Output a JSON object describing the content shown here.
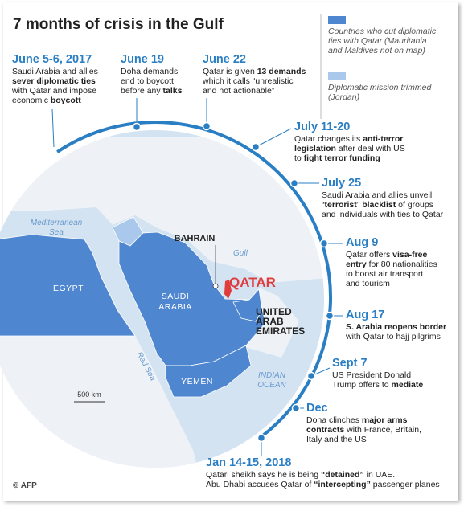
{
  "title": "7 months of crisis in the Gulf",
  "legend": [
    {
      "color": "#4f86d0",
      "lines": [
        "Countries who cut diplomatic",
        "ties with Qatar (Mauritania",
        "and Maldives not on map)"
      ]
    },
    {
      "color": "#a9c8ec",
      "lines": [
        "Diplomatic mission trimmed",
        "(Jordan)"
      ]
    }
  ],
  "events": [
    {
      "date": "June 5-6, 2017",
      "lines": [
        [
          {
            "text": "Saudi Arabia and allies"
          }
        ],
        [
          {
            "text": "sever diplomatic ties",
            "bold": true
          }
        ],
        [
          {
            "text": "with Qatar and impose"
          }
        ],
        [
          {
            "text": "economic "
          },
          {
            "text": "boycott",
            "bold": true
          }
        ]
      ]
    },
    {
      "date": "June 19",
      "lines": [
        [
          {
            "text": "Doha demands"
          }
        ],
        [
          {
            "text": "end to boycott"
          }
        ],
        [
          {
            "text": "before any "
          },
          {
            "text": "talks",
            "bold": true
          }
        ]
      ]
    },
    {
      "date": "June 22",
      "lines": [
        [
          {
            "text": "Qatar is given "
          },
          {
            "text": "13 demands",
            "bold": true
          }
        ],
        [
          {
            "text": "which it calls “unrealistic"
          }
        ],
        [
          {
            "text": "and not actionable”"
          }
        ]
      ]
    },
    {
      "date": "July 11-20",
      "lines": [
        [
          {
            "text": "Qatar changes its "
          },
          {
            "text": "anti-terror",
            "bold": true
          }
        ],
        [
          {
            "text": "legislation",
            "bold": true
          },
          {
            "text": " after deal with US"
          }
        ],
        [
          {
            "text": "to "
          },
          {
            "text": "fight terror funding",
            "bold": true
          }
        ]
      ]
    },
    {
      "date": "July 25",
      "lines": [
        [
          {
            "text": "Saudi Arabia and allies unveil"
          }
        ],
        [
          {
            "text": "“"
          },
          {
            "text": "terrorist",
            "bold": true
          },
          {
            "text": "” "
          },
          {
            "text": "blacklist",
            "bold": true
          },
          {
            "text": " of groups"
          }
        ],
        [
          {
            "text": "and individuals with ties to Qatar"
          }
        ]
      ]
    },
    {
      "date": "Aug 9",
      "lines": [
        [
          {
            "text": "Qatar offers "
          },
          {
            "text": "visa-free",
            "bold": true
          }
        ],
        [
          {
            "text": "entry",
            "bold": true
          },
          {
            "text": " for 80 nationalities"
          }
        ],
        [
          {
            "text": "to boost air transport"
          }
        ],
        [
          {
            "text": "and tourism"
          }
        ]
      ]
    },
    {
      "date": "Aug 17",
      "lines": [
        [
          {
            "text": "S. Arabia reopens border",
            "bold": true
          }
        ],
        [
          {
            "text": "with Qatar to hajj pilgrims"
          }
        ]
      ]
    },
    {
      "date": "Sept 7",
      "lines": [
        [
          {
            "text": "US President Donald"
          }
        ],
        [
          {
            "text": "Trump offers to "
          },
          {
            "text": "mediate",
            "bold": true
          }
        ]
      ]
    },
    {
      "date": "Dec",
      "lines": [
        [
          {
            "text": "Doha clinches "
          },
          {
            "text": "major arms",
            "bold": true
          }
        ],
        [
          {
            "text": "contracts",
            "bold": true
          },
          {
            "text": " with France, Britain,"
          }
        ],
        [
          {
            "text": "Italy and the US"
          }
        ]
      ]
    },
    {
      "date": "Jan 14-15, 2018",
      "lines": [
        [
          {
            "text": "Qatari sheikh says he is being "
          },
          {
            "text": "“detained”",
            "bold": true
          },
          {
            "text": " in UAE."
          }
        ],
        [
          {
            "text": "Abu Dhabi accuses Qatar of "
          },
          {
            "text": "“intercepting”",
            "bold": true
          },
          {
            "text": " passenger planes"
          }
        ]
      ]
    }
  ],
  "map": {
    "mediterranean": [
      "Mediterranean",
      "Sea"
    ],
    "egypt": "EGYPT",
    "saudi": [
      "SAUDI",
      "ARABIA"
    ],
    "yemen": "YEMEN",
    "bahrain": "BAHRAIN",
    "qatar": "QATAR",
    "uae": [
      "UNITED",
      "ARAB",
      "EMIRATES"
    ],
    "gulf": "Gulf",
    "red_sea": "Red Sea",
    "indian_ocean": [
      "INDIAN",
      "OCEAN"
    ],
    "scale": "500 km"
  },
  "credit": "© AFP"
}
